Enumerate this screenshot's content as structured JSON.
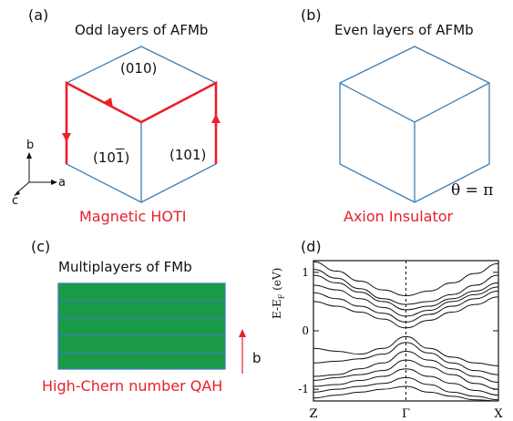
{
  "panels": {
    "a": {
      "label": "(a)",
      "title": "Odd layers of AFMb",
      "caption": "Magnetic HOTI",
      "faces": [
        "(010)",
        "(101)"
      ],
      "face_left": {
        "prefix": "(10",
        "bar": "1",
        "suffix": ")"
      },
      "axes": [
        "b",
        "a",
        "c"
      ]
    },
    "b": {
      "label": "(b)",
      "title": "Even layers of AFMb",
      "caption": "Axion Insulator",
      "theta_text": "θ = π"
    },
    "c": {
      "label": "(c)",
      "title": "Multiplayers of FMb",
      "caption": "High-Chern number QAH",
      "arrow_label": "b",
      "layer_color": "#1a9a47",
      "layer_count": 5
    },
    "d": {
      "label": "(d)"
    }
  },
  "colors": {
    "red": "#e8212b",
    "blue": "#3c7fb5",
    "green": "#1a9a47"
  },
  "chart_data": {
    "type": "line",
    "title": "",
    "xlabel": "",
    "ylabel": "E-E_F (eV)",
    "ylim": [
      -1.2,
      1.2
    ],
    "x_ticks": [
      "Z",
      "Γ",
      "X"
    ],
    "y_ticks": [
      "1",
      "0",
      "-1"
    ],
    "y_tick_values": [
      1,
      0,
      -1
    ],
    "x": [
      0,
      0.25,
      0.5,
      0.75,
      1.0,
      1.25,
      1.5,
      1.75,
      2.0
    ],
    "series": [
      {
        "values": [
          1.18,
          1.02,
          0.85,
          0.7,
          0.6,
          0.68,
          0.82,
          0.98,
          1.15
        ]
      },
      {
        "values": [
          1.05,
          0.9,
          0.72,
          0.55,
          0.45,
          0.5,
          0.62,
          0.78,
          0.95
        ]
      },
      {
        "values": [
          0.95,
          0.82,
          0.66,
          0.5,
          0.36,
          0.42,
          0.55,
          0.68,
          0.82
        ]
      },
      {
        "values": [
          0.78,
          0.7,
          0.55,
          0.4,
          0.25,
          0.35,
          0.5,
          0.62,
          0.75
        ]
      },
      {
        "values": [
          0.65,
          0.55,
          0.42,
          0.3,
          0.15,
          0.28,
          0.42,
          0.55,
          0.68
        ]
      },
      {
        "values": [
          0.5,
          0.42,
          0.32,
          0.2,
          0.05,
          0.18,
          0.32,
          0.45,
          0.58
        ]
      },
      {
        "values": [
          -0.3,
          -0.35,
          -0.4,
          -0.3,
          -0.1,
          -0.3,
          -0.45,
          -0.55,
          -0.6
        ]
      },
      {
        "values": [
          -0.55,
          -0.52,
          -0.48,
          -0.4,
          -0.2,
          -0.38,
          -0.55,
          -0.68,
          -0.75
        ]
      },
      {
        "values": [
          -0.78,
          -0.75,
          -0.65,
          -0.55,
          -0.35,
          -0.5,
          -0.65,
          -0.78,
          -0.88
        ]
      },
      {
        "values": [
          -0.85,
          -0.8,
          -0.75,
          -0.68,
          -0.5,
          -0.62,
          -0.75,
          -0.9,
          -1.0
        ]
      },
      {
        "values": [
          -0.95,
          -0.92,
          -0.85,
          -0.78,
          -0.65,
          -0.78,
          -0.9,
          -1.02,
          -1.1
        ]
      },
      {
        "values": [
          -1.05,
          -1.0,
          -0.95,
          -0.9,
          -0.8,
          -0.92,
          -1.05,
          -1.12,
          -1.18
        ]
      },
      {
        "values": [
          -1.15,
          -1.1,
          -1.05,
          -1.0,
          -0.95,
          -1.05,
          -1.12,
          -1.18,
          -1.2
        ]
      }
    ]
  }
}
